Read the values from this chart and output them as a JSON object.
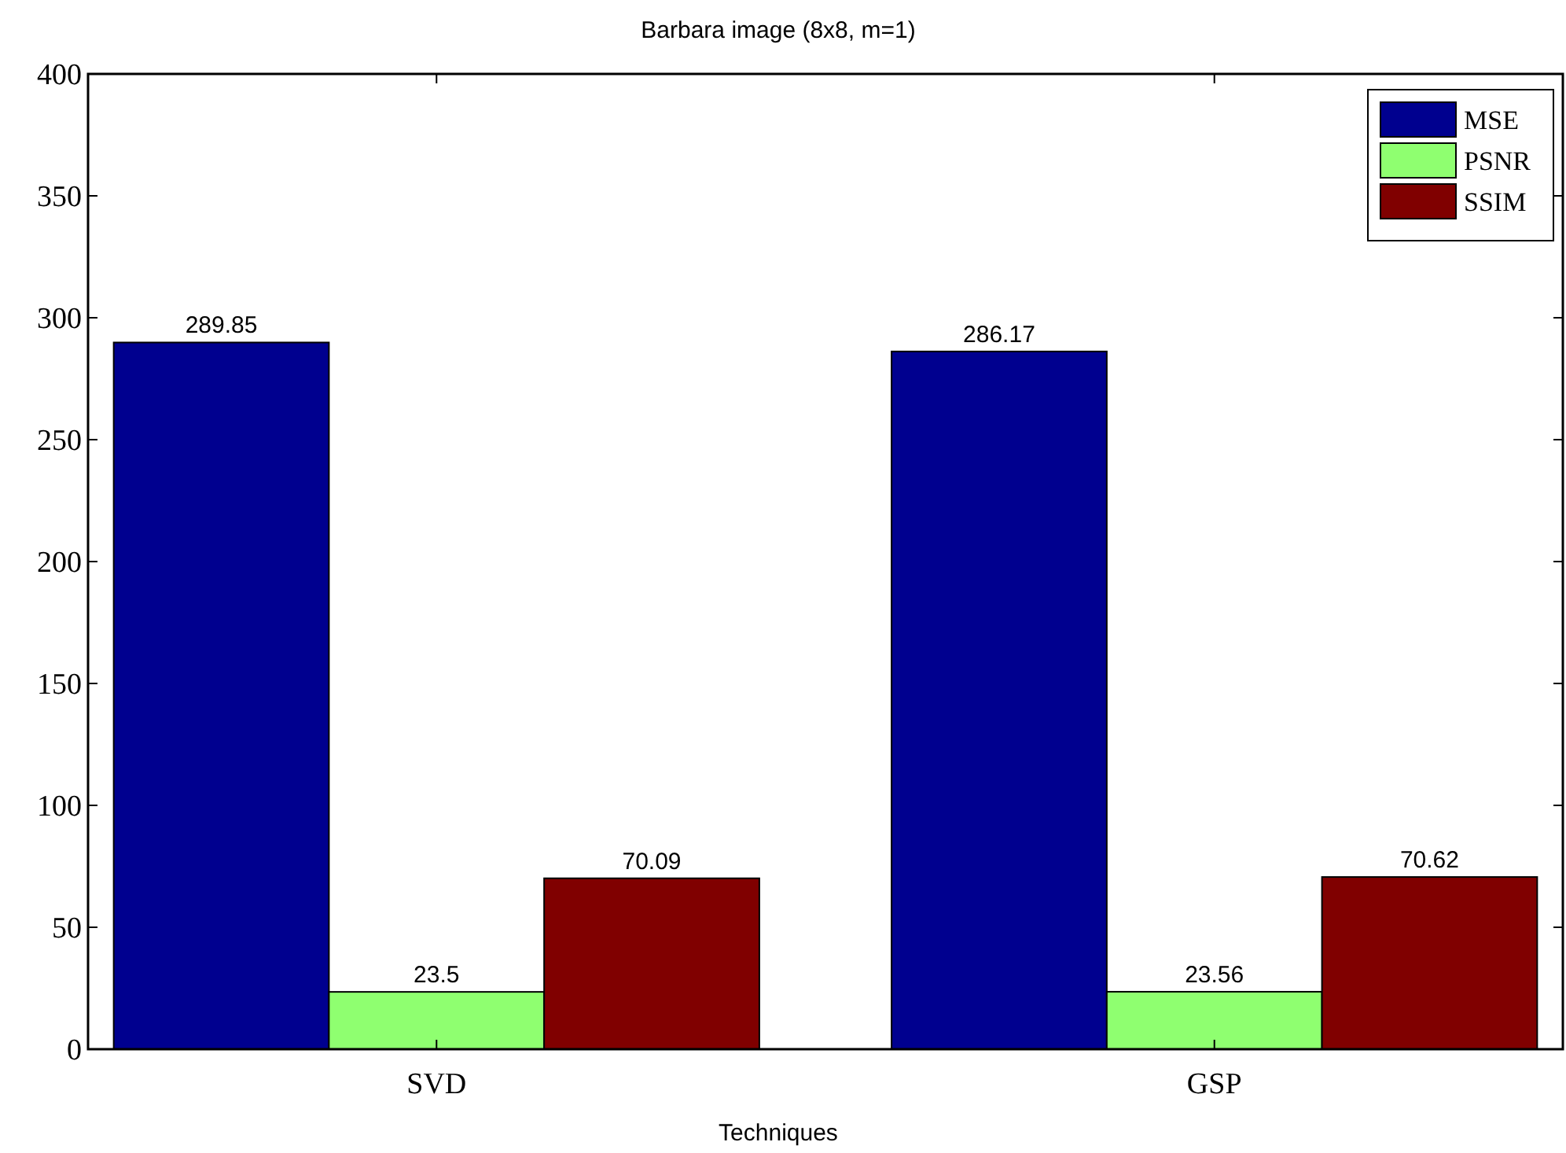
{
  "chart_data": {
    "type": "bar",
    "title": "Barbara image (8x8, m=1)",
    "xlabel": "Techniques",
    "categories": [
      "SVD",
      "GSP"
    ],
    "series": [
      {
        "name": "MSE",
        "color": "#00008f",
        "values": [
          289.85,
          286.17
        ]
      },
      {
        "name": "PSNR",
        "color": "#8fff70",
        "values": [
          23.5,
          23.56
        ]
      },
      {
        "name": "SSIM",
        "color": "#800000",
        "values": [
          70.09,
          70.62
        ]
      }
    ],
    "ylim": [
      0,
      400
    ],
    "yticks": [
      0,
      50,
      100,
      150,
      200,
      250,
      300,
      350,
      400
    ],
    "data_labels": true,
    "legend": "top right",
    "grid": false
  }
}
